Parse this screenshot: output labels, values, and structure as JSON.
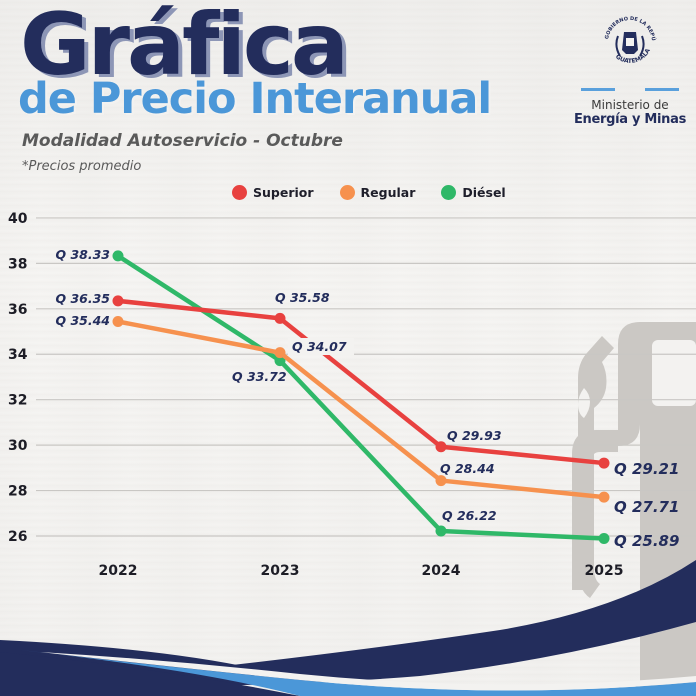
{
  "header": {
    "title": "Gráfica",
    "subtitle": "de Precio Interanual",
    "modalidad": "Modalidad Autoservicio - Octubre",
    "nota": "*Precios promedio"
  },
  "logo": {
    "seal_top_text": "GOBIERNO DE LA REPÚBLICA",
    "seal_bottom_text": "GUATEMALA",
    "line1": "Ministerio de",
    "line2": "Energía y Minas"
  },
  "colors": {
    "superior": "#e8413f",
    "regular": "#f6914e",
    "diesel": "#2fb868",
    "navy": "#232d5c",
    "light_blue": "#4b97d8",
    "grid": "#c9c7c4",
    "pump_icon": "#c9c6c2"
  },
  "chart_data": {
    "type": "line",
    "title": "Gráfica de Precio Interanual",
    "subtitle": "Modalidad Autoservicio - Octubre",
    "note": "*Precios promedio",
    "xlabel": "",
    "ylabel": "",
    "categories": [
      "2022",
      "2023",
      "2024",
      "2025"
    ],
    "yticks": [
      26,
      28,
      30,
      32,
      34,
      36,
      38,
      40
    ],
    "ylim": [
      26,
      40
    ],
    "grid": true,
    "legend_position": "top",
    "series": [
      {
        "name": "Superior",
        "color": "#e8413f",
        "values": [
          36.35,
          35.58,
          29.93,
          29.21
        ],
        "labels": [
          "Q 36.35",
          "Q 35.58",
          "Q 29.93",
          "Q 29.21"
        ]
      },
      {
        "name": "Regular",
        "color": "#f6914e",
        "values": [
          35.44,
          34.07,
          28.44,
          27.71
        ],
        "labels": [
          "Q 35.44",
          "Q 34.07",
          "Q 28.44",
          "Q 27.71"
        ]
      },
      {
        "name": "Diésel",
        "color": "#2fb868",
        "values": [
          38.33,
          33.72,
          26.22,
          25.89
        ],
        "labels": [
          "Q 38.33",
          "Q 33.72",
          "Q 26.22",
          "Q 25.89"
        ]
      }
    ]
  }
}
